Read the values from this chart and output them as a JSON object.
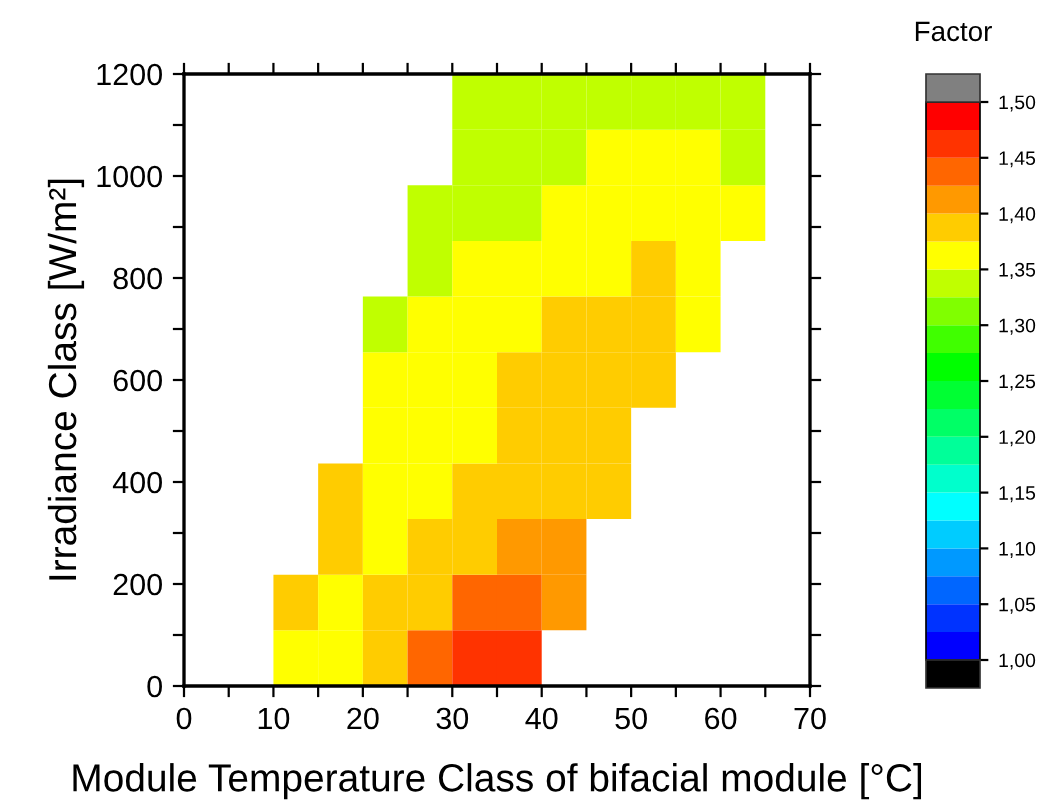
{
  "chart_data": {
    "type": "heatmap",
    "xlabel": "Module Temperature Class of bifacial module [°C]",
    "ylabel": "Irradiance Class [W/m²]",
    "clabel": "Factor",
    "x": [
      7.5,
      12.5,
      17.5,
      22.5,
      27.5,
      32.5,
      37.5,
      42.5,
      47.5,
      52.5,
      57.5,
      62.5,
      67.5
    ],
    "cells": [
      [
        null,
        null,
        null,
        null,
        null,
        1.34,
        1.34,
        1.34,
        1.34,
        1.34,
        1.34,
        1.34,
        null
      ],
      [
        null,
        null,
        null,
        null,
        null,
        1.34,
        1.34,
        1.34,
        1.36,
        1.36,
        1.36,
        1.34,
        null
      ],
      [
        null,
        null,
        null,
        null,
        1.34,
        1.34,
        1.34,
        1.36,
        1.36,
        1.36,
        1.36,
        1.36,
        null
      ],
      [
        null,
        null,
        null,
        null,
        1.34,
        1.36,
        1.36,
        1.36,
        1.36,
        1.39,
        1.36,
        null,
        null
      ],
      [
        null,
        null,
        null,
        1.34,
        1.36,
        1.36,
        1.36,
        1.39,
        1.39,
        1.39,
        1.36,
        null,
        null
      ],
      [
        null,
        null,
        null,
        1.36,
        1.36,
        1.36,
        1.39,
        1.39,
        1.39,
        1.39,
        null,
        null,
        null
      ],
      [
        null,
        null,
        null,
        1.36,
        1.36,
        1.36,
        1.39,
        1.39,
        1.39,
        null,
        null,
        null,
        null
      ],
      [
        null,
        null,
        1.39,
        1.36,
        1.36,
        1.39,
        1.39,
        1.39,
        1.39,
        null,
        null,
        null,
        null
      ],
      [
        null,
        null,
        1.39,
        1.36,
        1.39,
        1.39,
        1.41,
        1.41,
        null,
        null,
        null,
        null,
        null
      ],
      [
        null,
        1.39,
        1.36,
        1.39,
        1.39,
        1.44,
        1.44,
        1.41,
        null,
        null,
        null,
        null,
        null
      ],
      [
        null,
        1.36,
        1.36,
        1.39,
        1.44,
        1.46,
        1.46,
        null,
        null,
        null,
        null,
        null,
        null
      ]
    ],
    "colors": [
      "#000000",
      "#0000ff",
      "#0033ff",
      "#0066ff",
      "#0099ff",
      "#00ccff",
      "#00ffff",
      "#00ffcc",
      "#00ff99",
      "#00ff66",
      "#00ff33",
      "#00ff00",
      "#40ff00",
      "#80ff00",
      "#c0ff00",
      "#ffff00",
      "#ffcc00",
      "#ff9900",
      "#ff6600",
      "#ff3300",
      "#ff0000",
      "#808080"
    ],
    "clim": [
      1.0,
      1.5
    ],
    "cticks": [
      {
        "value": 1.0,
        "label": "1,00"
      },
      {
        "value": 1.05,
        "label": "1,05"
      },
      {
        "value": 1.1,
        "label": "1,10"
      },
      {
        "value": 1.15,
        "label": "1,15"
      },
      {
        "value": 1.2,
        "label": "1,20"
      },
      {
        "value": 1.25,
        "label": "1,25"
      },
      {
        "value": 1.3,
        "label": "1,30"
      },
      {
        "value": 1.35,
        "label": "1,35"
      },
      {
        "value": 1.4,
        "label": "1,40"
      },
      {
        "value": 1.45,
        "label": "1,45"
      },
      {
        "value": 1.5,
        "label": "1,50"
      }
    ],
    "xlim": [
      0,
      70
    ],
    "xticks": [
      0,
      {
        "value": 5,
        "label": null
      },
      10,
      {
        "value": 15,
        "label": null
      },
      20,
      {
        "value": 25,
        "label": null
      },
      30,
      {
        "value": 35,
        "label": null
      },
      40,
      {
        "value": 45,
        "label": null
      },
      50,
      {
        "value": 55,
        "label": null
      },
      60,
      {
        "value": 65,
        "label": null
      },
      70
    ],
    "ylim": [
      0,
      1200
    ],
    "yticks": [
      0,
      {
        "value": 100,
        "label": null
      },
      200,
      {
        "value": 300,
        "label": null
      },
      400,
      {
        "value": 500,
        "label": null
      },
      600,
      {
        "value": 700,
        "label": null
      },
      800,
      {
        "value": 900,
        "label": null
      },
      1000,
      {
        "value": 1100,
        "label": null
      },
      1200
    ],
    "grid": false
  }
}
